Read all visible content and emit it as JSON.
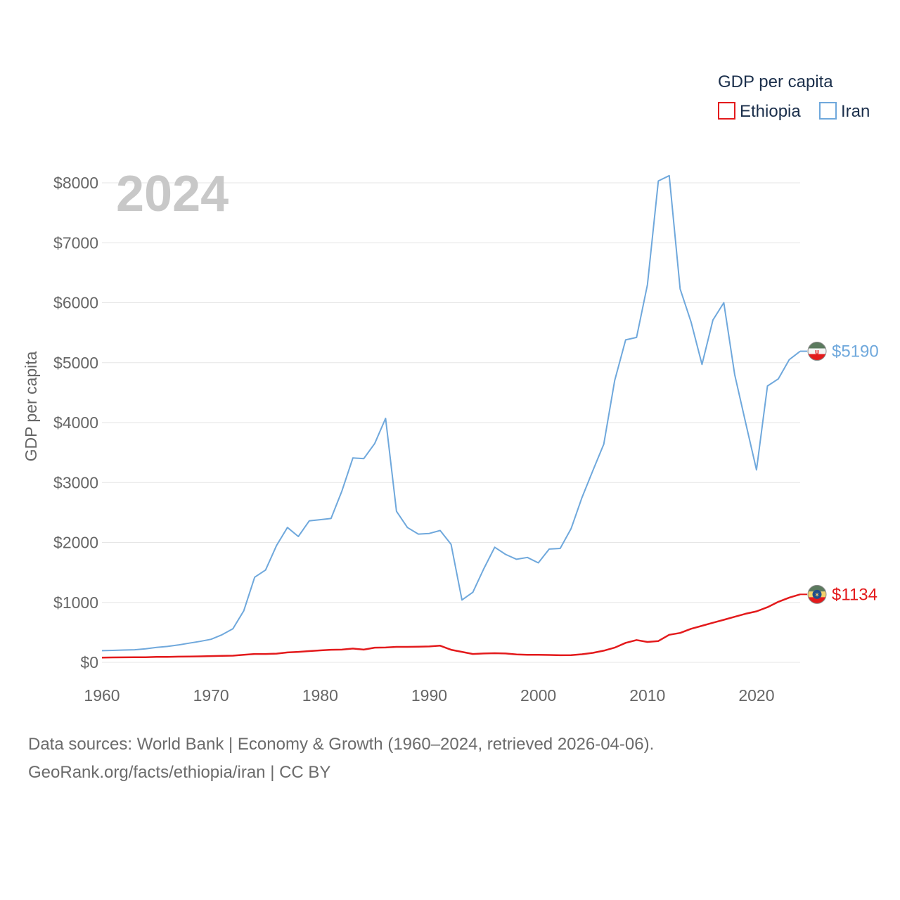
{
  "chart_data": {
    "type": "line",
    "title": "GDP per capita",
    "year_label": "2024",
    "ylabel": "GDP per capita",
    "xlabel": "",
    "xlim": [
      1960,
      2024
    ],
    "ylim": [
      0,
      8000
    ],
    "x_ticks": [
      "1960",
      "1970",
      "1980",
      "1990",
      "2000",
      "2010",
      "2020"
    ],
    "x_tick_values": [
      1960,
      1970,
      1980,
      1990,
      2000,
      2010,
      2020
    ],
    "y_ticks": [
      "$0",
      "$1000",
      "$2000",
      "$3000",
      "$4000",
      "$5000",
      "$6000",
      "$7000",
      "$8000"
    ],
    "y_tick_values": [
      0,
      1000,
      2000,
      3000,
      4000,
      5000,
      6000,
      7000,
      8000
    ],
    "grid": true,
    "legend_position": "top-right",
    "legend_title": "GDP per capita",
    "x": [
      1960,
      1961,
      1962,
      1963,
      1964,
      1965,
      1966,
      1967,
      1968,
      1969,
      1970,
      1971,
      1972,
      1973,
      1974,
      1975,
      1976,
      1977,
      1978,
      1979,
      1980,
      1981,
      1982,
      1983,
      1984,
      1985,
      1986,
      1987,
      1988,
      1989,
      1990,
      1991,
      1992,
      1993,
      1994,
      1995,
      1996,
      1997,
      1998,
      1999,
      2000,
      2001,
      2002,
      2003,
      2004,
      2005,
      2006,
      2007,
      2008,
      2009,
      2010,
      2011,
      2012,
      2013,
      2014,
      2015,
      2016,
      2017,
      2018,
      2019,
      2020,
      2021,
      2022,
      2023,
      2024
    ],
    "series": [
      {
        "name": "Ethiopia",
        "color": "#e31a1c",
        "end_label": "$1134",
        "values": [
          80,
          82,
          83,
          84,
          86,
          90,
          92,
          95,
          97,
          100,
          104,
          108,
          112,
          125,
          140,
          140,
          145,
          165,
          175,
          188,
          200,
          210,
          212,
          230,
          212,
          245,
          248,
          258,
          258,
          262,
          265,
          278,
          210,
          175,
          140,
          148,
          152,
          148,
          132,
          127,
          125,
          123,
          118,
          120,
          135,
          158,
          195,
          245,
          325,
          372,
          340,
          355,
          460,
          490,
          560,
          610,
          660,
          710,
          760,
          810,
          850,
          920,
          1010,
          1080,
          1134
        ]
      },
      {
        "name": "Iran",
        "color": "#6fa8dc",
        "end_label": "$5190",
        "values": [
          195,
          200,
          205,
          210,
          225,
          250,
          265,
          290,
          320,
          350,
          385,
          460,
          560,
          860,
          1420,
          1540,
          1950,
          2250,
          2100,
          2360,
          2380,
          2400,
          2860,
          3410,
          3400,
          3650,
          4070,
          2520,
          2250,
          2140,
          2150,
          2200,
          1970,
          1040,
          1170,
          1560,
          1920,
          1800,
          1720,
          1750,
          1660,
          1890,
          1900,
          2230,
          2750,
          3200,
          3640,
          4700,
          5380,
          5420,
          6300,
          8030,
          8120,
          6230,
          5680,
          4970,
          5710,
          6000,
          4800,
          4000,
          3210,
          4610,
          4730,
          5050,
          5190
        ]
      }
    ]
  },
  "footer": {
    "line1": "Data sources: World Bank | Economy & Growth (1960–2024, retrieved 2026-04-06).",
    "line2": "GeoRank.org/facts/ethiopia/iran | CC BY"
  }
}
